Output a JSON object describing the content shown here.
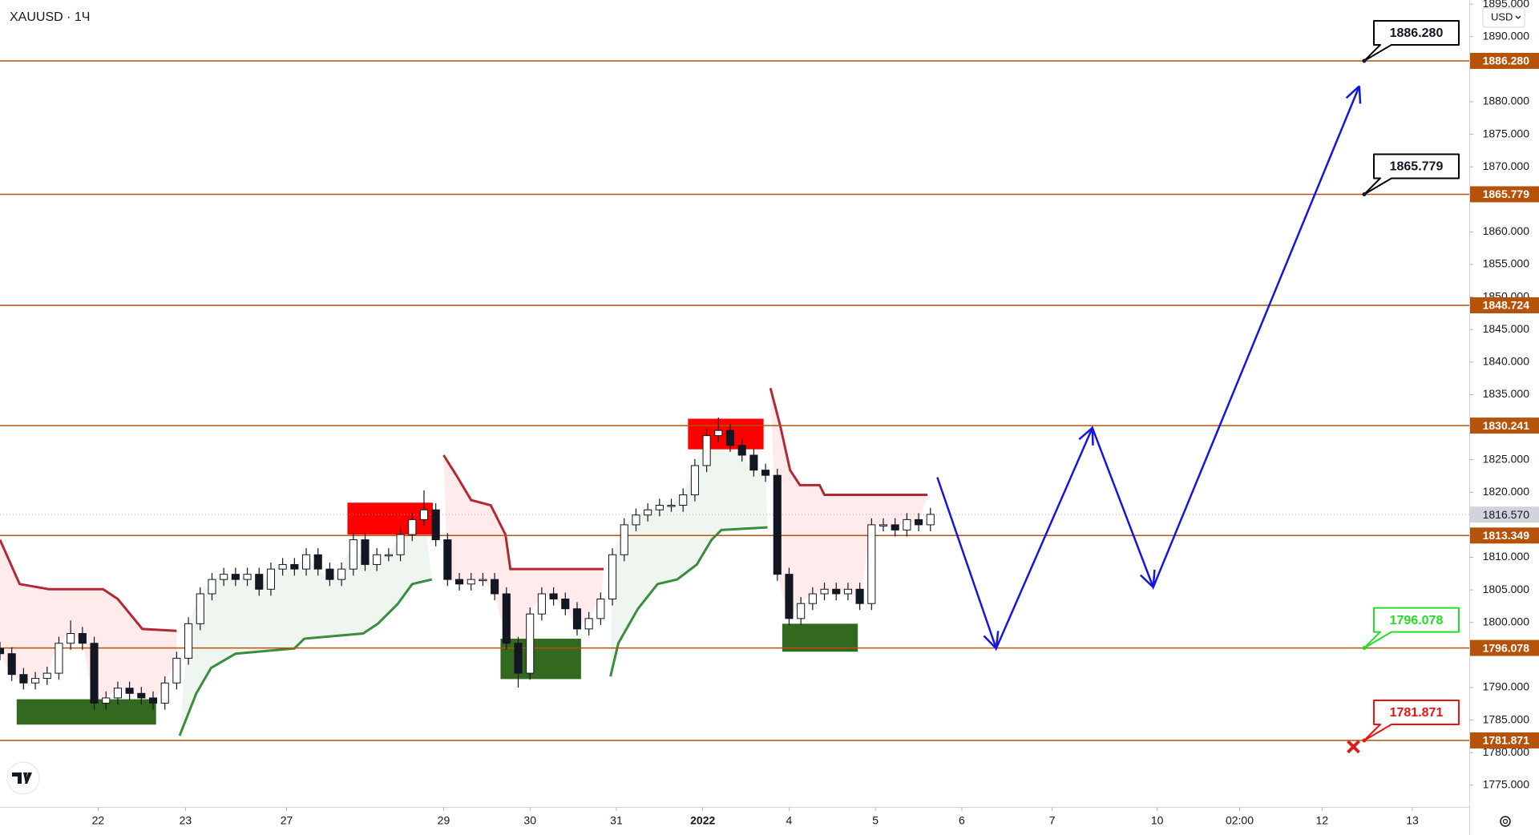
{
  "chart_data": {
    "type": "candlestick",
    "title": "XAUUSD · 1Ч",
    "currency": "USD",
    "xlim": [
      0,
      374.25
    ],
    "ylim": [
      1771.65,
      1895.63
    ],
    "xticks": [
      {
        "value": 25,
        "label": "22"
      },
      {
        "value": 47.25,
        "label": "23"
      },
      {
        "value": 73,
        "label": "27"
      },
      {
        "value": 113,
        "label": "29"
      },
      {
        "value": 135,
        "label": "30"
      },
      {
        "value": 157,
        "label": "31"
      },
      {
        "value": 179,
        "label": "2022"
      },
      {
        "value": 201,
        "label": "4"
      },
      {
        "value": 223,
        "label": "5"
      },
      {
        "value": 245,
        "label": "6"
      },
      {
        "value": 268,
        "label": "7"
      },
      {
        "value": 294.75,
        "label": "10"
      },
      {
        "value": 315.75,
        "label": "02:00"
      },
      {
        "value": 336.75,
        "label": "12"
      },
      {
        "value": 359.75,
        "label": "13"
      }
    ],
    "yticks": [
      {
        "value": 1775,
        "label": "1775.000"
      },
      {
        "value": 1780,
        "label": "1780.000"
      },
      {
        "value": 1785,
        "label": "1785.000"
      },
      {
        "value": 1790,
        "label": "1790.000"
      },
      {
        "value": 1800,
        "label": "1800.000"
      },
      {
        "value": 1805,
        "label": "1805.000"
      },
      {
        "value": 1810,
        "label": "1810.000"
      },
      {
        "value": 1820,
        "label": "1820.000"
      },
      {
        "value": 1825,
        "label": "1825.000"
      },
      {
        "value": 1835,
        "label": "1835.000"
      },
      {
        "value": 1840,
        "label": "1840.000"
      },
      {
        "value": 1845,
        "label": "1845.000"
      },
      {
        "value": 1850,
        "label": "1850.000"
      },
      {
        "value": 1855,
        "label": "1855.000"
      },
      {
        "value": 1860,
        "label": "1860.000"
      },
      {
        "value": 1870,
        "label": "1870.000"
      },
      {
        "value": 1875,
        "label": "1875.000"
      },
      {
        "value": 1880,
        "label": "1880.000"
      },
      {
        "value": 1890,
        "label": "1890.000"
      },
      {
        "value": 1895,
        "label": "1895.000"
      }
    ],
    "x": [
      0,
      3,
      6,
      9,
      12,
      15,
      18,
      21,
      24,
      27,
      30,
      33,
      36,
      39,
      42,
      45,
      48,
      51,
      54,
      57,
      60,
      63,
      66,
      69,
      72,
      75,
      78,
      81,
      84,
      87,
      90,
      93,
      96,
      99,
      102,
      105,
      108,
      111,
      114,
      117,
      120,
      123,
      126,
      129,
      132,
      135,
      138,
      141,
      144,
      147,
      150,
      153,
      156,
      159,
      162,
      165,
      168,
      171,
      174,
      177,
      180,
      183,
      186,
      189,
      192,
      195,
      198,
      201,
      204,
      207,
      210,
      213,
      216,
      219,
      222,
      225,
      228,
      231,
      234,
      237
    ],
    "open": [
      1796,
      1795.2,
      1792,
      1790.7,
      1791.4,
      1792.2,
      1796.8,
      1798.3,
      1796.8,
      1787.6,
      1788.4,
      1789.9,
      1789.1,
      1788.4,
      1787.6,
      1790.7,
      1794.5,
      1799.8,
      1804.4,
      1806.6,
      1807.4,
      1806.6,
      1807.4,
      1805.1,
      1808.2,
      1808.9,
      1808.2,
      1810.4,
      1808.2,
      1806.6,
      1808.2,
      1812.7,
      1808.9,
      1810.4,
      1810.4,
      1813.5,
      1815.8,
      1817.3,
      1812.7,
      1806.6,
      1805.9,
      1806.6,
      1806.6,
      1804.4,
      1796.8,
      1792.2,
      1801.3,
      1804.4,
      1803.6,
      1802.1,
      1799,
      1800.6,
      1803.6,
      1810.4,
      1815,
      1816.5,
      1817.3,
      1818,
      1818,
      1819.6,
      1824.1,
      1828.7,
      1829.5,
      1827.2,
      1825.7,
      1823.4,
      1822.6,
      1807.4,
      1800.6,
      1802.9,
      1804.4,
      1805.1,
      1804.4,
      1805.1,
      1802.9,
      1815,
      1815,
      1814.2,
      1815.8,
      1815
    ],
    "high": [
      1797,
      1796.2,
      1793,
      1792.4,
      1793.2,
      1797.8,
      1800.3,
      1799.3,
      1797.8,
      1789.4,
      1790.9,
      1790.9,
      1790.1,
      1789.4,
      1791.7,
      1795.5,
      1800.8,
      1805.4,
      1807.6,
      1808.4,
      1808.4,
      1808.4,
      1808.4,
      1809.2,
      1809.9,
      1809.9,
      1811.4,
      1811.4,
      1809.2,
      1809.2,
      1813.7,
      1813.7,
      1811.4,
      1811.4,
      1814.5,
      1816.8,
      1820.3,
      1818.3,
      1813.7,
      1807.6,
      1807.6,
      1807.6,
      1807.6,
      1805.4,
      1797.8,
      1802.3,
      1805.4,
      1805.4,
      1804.6,
      1803.1,
      1801.6,
      1804.6,
      1811.4,
      1816,
      1817.5,
      1818.3,
      1819,
      1819,
      1820.6,
      1825.1,
      1829.7,
      1831.5,
      1830.5,
      1828.2,
      1826.7,
      1824.4,
      1823.6,
      1808.4,
      1803.9,
      1805.4,
      1806.1,
      1806.1,
      1806.1,
      1806.1,
      1816,
      1816,
      1816,
      1816.8,
      1816.8,
      1817.6
    ],
    "low": [
      1794.2,
      1791,
      1789.7,
      1789.7,
      1790.4,
      1791.2,
      1795.8,
      1795.8,
      1786.6,
      1786.6,
      1787.4,
      1788.1,
      1787.4,
      1786.6,
      1786.6,
      1789.7,
      1793.5,
      1798.8,
      1803.4,
      1805.6,
      1805.6,
      1805.6,
      1804.1,
      1804.1,
      1807.2,
      1807.2,
      1807.2,
      1807.2,
      1805.6,
      1805.6,
      1807.2,
      1807.9,
      1807.9,
      1809.4,
      1809.4,
      1812.5,
      1814.8,
      1811.7,
      1805.6,
      1804.9,
      1804.9,
      1805.6,
      1803.4,
      1795.8,
      1790,
      1791.2,
      1800.3,
      1802.6,
      1801.1,
      1798,
      1798,
      1799.6,
      1802.6,
      1809.4,
      1814,
      1815.5,
      1816.3,
      1817,
      1817,
      1818.6,
      1823.1,
      1827.7,
      1826.2,
      1824.7,
      1822.4,
      1821.6,
      1806.4,
      1799.6,
      1799.6,
      1801.9,
      1803.4,
      1803.4,
      1803.4,
      1801.9,
      1801.9,
      1814,
      1813.2,
      1813.2,
      1814,
      1814
    ],
    "close": [
      1795.2,
      1792,
      1790.7,
      1791.4,
      1792.2,
      1796.8,
      1798.3,
      1796.8,
      1787.6,
      1788.4,
      1789.9,
      1789.1,
      1788.4,
      1787.6,
      1790.7,
      1794.5,
      1799.8,
      1804.4,
      1806.6,
      1807.4,
      1806.6,
      1807.4,
      1805.1,
      1808.2,
      1808.9,
      1808.2,
      1810.4,
      1808.2,
      1806.6,
      1808.2,
      1812.7,
      1808.9,
      1810.4,
      1810.4,
      1813.5,
      1815.8,
      1817.3,
      1812.7,
      1806.6,
      1805.9,
      1806.6,
      1806.6,
      1804.4,
      1796.8,
      1792.2,
      1801.3,
      1804.4,
      1803.6,
      1802.1,
      1799,
      1800.6,
      1803.6,
      1810.4,
      1815,
      1816.5,
      1817.3,
      1818,
      1818,
      1819.6,
      1824.1,
      1828.7,
      1829.5,
      1827.2,
      1825.7,
      1823.4,
      1822.6,
      1807.4,
      1800.6,
      1802.9,
      1804.4,
      1805.1,
      1804.4,
      1805.1,
      1802.9,
      1815,
      1815,
      1814.2,
      1815.8,
      1815,
      1816.6
    ],
    "up_color": "#ffffff",
    "down_color": "#131722",
    "lines": [
      {
        "color": "#b22833",
        "fill": "rgba(255,60,60,0.1)",
        "x": [
          0,
          5,
          12.5,
          26.25,
          30,
          36.25,
          45,
          null,
          113,
          116.25,
          120,
          125,
          128.75,
          130,
          153.75,
          null,
          196.25,
          198.75,
          201.25,
          203.75,
          208.75,
          210,
          236.25
        ],
        "values": [
          1812.7,
          1805.9,
          1805.1,
          1805.1,
          1803.6,
          1799.0,
          1798.7,
          null,
          1825.7,
          1822.6,
          1818.8,
          1818.0,
          1813.5,
          1808.2,
          1808.2,
          null,
          1836.0,
          1830.2,
          1823.4,
          1821.1,
          1821.1,
          1819.6,
          1819.6
        ]
      },
      {
        "color": "#388e3c",
        "fill": "rgba(56,142,60,0.08)",
        "x": [
          45.75,
          50,
          53.75,
          60,
          75,
          77.5,
          92.5,
          96.25,
          101.25,
          105,
          110,
          null,
          155.5,
          157.5,
          162.5,
          167.5,
          172.5,
          177.5,
          181.25,
          183.75,
          195.5
        ],
        "values": [
          1782.6,
          1789.1,
          1793.0,
          1795.2,
          1796.0,
          1797.5,
          1798.3,
          1799.8,
          1802.8,
          1805.9,
          1806.6,
          null,
          1791.7,
          1796.8,
          1802.1,
          1805.9,
          1806.6,
          1808.9,
          1812.7,
          1814.2,
          1814.6
        ]
      }
    ],
    "zones": [
      {
        "x": [
          88.5,
          110.25
        ],
        "top": 1818.4,
        "bottom": 1813.5,
        "color": "#ff0000"
      },
      {
        "x": [
          175.25,
          194.5
        ],
        "top": 1831.3,
        "bottom": 1826.6,
        "color": "#ff0000"
      },
      {
        "x": [
          4.25,
          39.75
        ],
        "top": 1788.2,
        "bottom": 1784.3,
        "color": "#33691e"
      },
      {
        "x": [
          127.5,
          148
        ],
        "top": 1797.5,
        "bottom": 1791.3,
        "color": "#33691e"
      },
      {
        "x": [
          199.25,
          218.5
        ],
        "top": 1799.8,
        "bottom": 1795.5,
        "color": "#33691e"
      }
    ],
    "levels": [
      {
        "value": 1886.28,
        "label": "1886.280"
      },
      {
        "value": 1865.779,
        "label": "1865.779"
      },
      {
        "value": 1848.724,
        "label": "1848.724"
      },
      {
        "value": 1830.241,
        "label": "1830.241"
      },
      {
        "value": 1813.349,
        "label": "1813.349"
      },
      {
        "value": 1796.078,
        "label": "1796.078"
      },
      {
        "value": 1781.871,
        "label": "1781.871"
      }
    ],
    "level_color": "#b45309",
    "last_price": {
      "value": 1816.57,
      "label": "1816.570"
    },
    "callouts": [
      {
        "x": 347.5,
        "value": 1886.28,
        "label": "1886.280",
        "color": "#000000"
      },
      {
        "x": 347.5,
        "value": 1865.779,
        "label": "1865.779",
        "color": "#000000"
      },
      {
        "x": 347.5,
        "value": 1796.078,
        "label": "1796.078",
        "color": "#22dd22"
      },
      {
        "x": 347.5,
        "value": 1781.871,
        "label": "1781.871",
        "color": "#ee1111"
      }
    ],
    "projection": {
      "color": "#1515e0",
      "x": [
        238.75,
        253.75,
        278.25,
        293.75,
        346.25
      ],
      "values": [
        1822.3,
        1796.0,
        1829.9,
        1805.4,
        1882.4
      ]
    },
    "marker": {
      "x": 344.75,
      "value": 1780.9,
      "color": "#e01b1b"
    }
  }
}
